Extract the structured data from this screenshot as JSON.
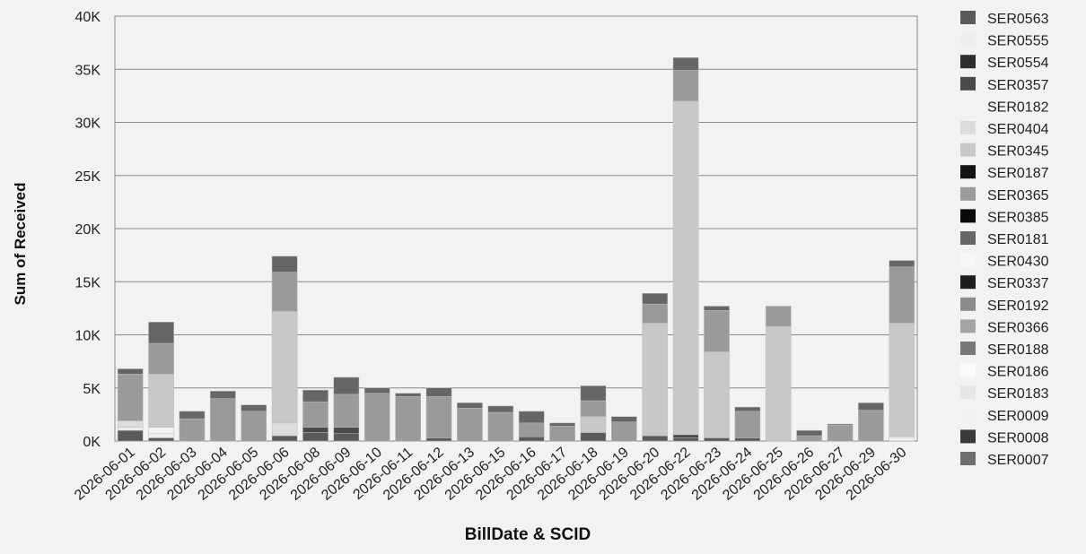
{
  "chart_data": {
    "type": "bar",
    "stacked": true,
    "title": "",
    "xlabel": "BillDate & SCID",
    "ylabel": "Sum of Received",
    "ylim": [
      0,
      40000
    ],
    "yticks": [
      0,
      5000,
      10000,
      15000,
      20000,
      25000,
      30000,
      35000,
      40000
    ],
    "ytick_labels": [
      "0K",
      "5K",
      "10K",
      "15K",
      "20K",
      "25K",
      "30K",
      "35K",
      "40K"
    ],
    "grid": true,
    "legend": "right",
    "categories": [
      "2026-06-01",
      "2026-06-02",
      "2026-06-03",
      "2026-06-04",
      "2026-06-05",
      "2026-06-06",
      "2026-06-08",
      "2026-06-09",
      "2026-06-10",
      "2026-06-11",
      "2026-06-12",
      "2026-06-13",
      "2026-06-15",
      "2026-06-16",
      "2026-06-17",
      "2026-06-18",
      "2026-06-19",
      "2026-06-20",
      "2026-06-22",
      "2026-06-23",
      "2026-06-24",
      "2026-06-25",
      "2026-06-26",
      "2026-06-27",
      "2026-06-29",
      "2026-06-30"
    ],
    "series": [
      {
        "name": "SER0563",
        "color": "#5a5a5a",
        "values": [
          1000,
          300,
          0,
          0,
          0,
          500,
          800,
          700,
          0,
          0,
          300,
          0,
          0,
          400,
          0,
          800,
          0,
          500,
          300,
          300,
          300,
          0,
          0,
          0,
          0,
          0
        ]
      },
      {
        "name": "SER0555",
        "color": "#ededed",
        "values": [
          300,
          400,
          0,
          0,
          0,
          0,
          0,
          0,
          0,
          0,
          0,
          0,
          0,
          0,
          0,
          0,
          0,
          0,
          0,
          0,
          0,
          0,
          0,
          0,
          0,
          400
        ]
      },
      {
        "name": "SER0554",
        "color": "#2e2e2e",
        "values": [
          0,
          0,
          0,
          0,
          0,
          0,
          0,
          0,
          0,
          0,
          0,
          0,
          0,
          0,
          0,
          0,
          0,
          0,
          0,
          0,
          0,
          0,
          0,
          0,
          0,
          0
        ]
      },
      {
        "name": "SER0357",
        "color": "#4a4a4a",
        "values": [
          0,
          0,
          0,
          0,
          0,
          0,
          500,
          600,
          0,
          0,
          0,
          0,
          0,
          0,
          0,
          0,
          0,
          0,
          300,
          0,
          0,
          0,
          0,
          0,
          0,
          0
        ]
      },
      {
        "name": "SER0182",
        "color": "#f3f3f3",
        "values": [
          0,
          600,
          0,
          0,
          0,
          0,
          0,
          0,
          0,
          0,
          0,
          0,
          0,
          0,
          0,
          0,
          0,
          0,
          0,
          0,
          0,
          0,
          0,
          0,
          0,
          0
        ]
      },
      {
        "name": "SER0404",
        "color": "#dcdcdc",
        "values": [
          600,
          0,
          0,
          0,
          0,
          1200,
          0,
          0,
          0,
          0,
          0,
          0,
          0,
          0,
          0,
          0,
          0,
          0,
          0,
          0,
          0,
          0,
          0,
          0,
          0,
          0
        ]
      },
      {
        "name": "SER0345",
        "color": "#c8c8c8",
        "values": [
          0,
          5000,
          0,
          0,
          0,
          10500,
          0,
          0,
          0,
          0,
          0,
          0,
          0,
          0,
          0,
          1500,
          0,
          10600,
          31400,
          8100,
          0,
          10800,
          0,
          0,
          0,
          10700
        ]
      },
      {
        "name": "SER0187",
        "color": "#141414",
        "values": [
          0,
          0,
          0,
          0,
          0,
          0,
          0,
          0,
          0,
          0,
          0,
          0,
          0,
          0,
          0,
          0,
          0,
          0,
          0,
          0,
          0,
          0,
          0,
          0,
          0,
          0
        ]
      },
      {
        "name": "SER0365",
        "color": "#9a9a9a",
        "values": [
          4400,
          2900,
          2100,
          4000,
          2800,
          3700,
          2400,
          3100,
          4500,
          4200,
          3900,
          3100,
          2700,
          1300,
          1400,
          1500,
          1800,
          1800,
          2900,
          3900,
          2500,
          1900,
          500,
          1500,
          2900,
          5300
        ]
      },
      {
        "name": "SER0385",
        "color": "#0a0a0a",
        "values": [
          0,
          0,
          0,
          0,
          0,
          0,
          0,
          0,
          0,
          0,
          0,
          0,
          0,
          0,
          0,
          0,
          0,
          0,
          0,
          0,
          0,
          0,
          0,
          0,
          0,
          0
        ]
      },
      {
        "name": "SER0181",
        "color": "#666666",
        "values": [
          500,
          2000,
          700,
          700,
          600,
          1500,
          1100,
          1600,
          500,
          300,
          800,
          500,
          600,
          1100,
          300,
          1400,
          500,
          1000,
          1200,
          400,
          400,
          0,
          500,
          100,
          700,
          600
        ]
      },
      {
        "name": "SER0430",
        "color": "#f7f7f7",
        "values": [
          0,
          0,
          0,
          0,
          0,
          0,
          0,
          0,
          0,
          0,
          0,
          0,
          0,
          0,
          0,
          0,
          0,
          0,
          0,
          0,
          0,
          0,
          0,
          0,
          0,
          0
        ]
      },
      {
        "name": "SER0337",
        "color": "#1e1e1e",
        "values": [
          0,
          0,
          0,
          0,
          0,
          0,
          0,
          0,
          0,
          0,
          0,
          0,
          0,
          0,
          0,
          0,
          0,
          0,
          0,
          0,
          0,
          0,
          0,
          0,
          0,
          0
        ]
      },
      {
        "name": "SER0192",
        "color": "#8c8c8c",
        "values": [
          0,
          0,
          0,
          0,
          0,
          0,
          0,
          0,
          0,
          0,
          0,
          0,
          0,
          0,
          0,
          0,
          0,
          0,
          0,
          0,
          0,
          0,
          0,
          0,
          0,
          0
        ]
      },
      {
        "name": "SER0366",
        "color": "#a3a3a3",
        "values": [
          0,
          0,
          0,
          0,
          0,
          0,
          0,
          0,
          0,
          0,
          0,
          0,
          0,
          0,
          0,
          0,
          0,
          0,
          0,
          0,
          0,
          0,
          0,
          0,
          0,
          0
        ]
      },
      {
        "name": "SER0188",
        "color": "#787878",
        "values": [
          0,
          0,
          0,
          0,
          0,
          0,
          0,
          0,
          0,
          0,
          0,
          0,
          0,
          0,
          0,
          0,
          0,
          0,
          0,
          0,
          0,
          0,
          0,
          0,
          0,
          0
        ]
      },
      {
        "name": "SER0186",
        "color": "#fafafa",
        "values": [
          0,
          0,
          0,
          0,
          0,
          0,
          0,
          0,
          0,
          0,
          0,
          0,
          0,
          0,
          0,
          0,
          0,
          0,
          0,
          0,
          0,
          0,
          0,
          0,
          0,
          0
        ]
      },
      {
        "name": "SER0183",
        "color": "#e6e6e6",
        "values": [
          0,
          0,
          0,
          0,
          0,
          0,
          0,
          0,
          0,
          0,
          0,
          0,
          0,
          0,
          0,
          0,
          0,
          0,
          0,
          0,
          0,
          0,
          0,
          0,
          0,
          0
        ]
      },
      {
        "name": "SER0009",
        "color": "#f0f0f0",
        "values": [
          0,
          0,
          0,
          0,
          0,
          0,
          0,
          0,
          0,
          0,
          0,
          0,
          0,
          0,
          0,
          0,
          0,
          0,
          0,
          0,
          0,
          0,
          0,
          0,
          0,
          0
        ]
      },
      {
        "name": "SER0008",
        "color": "#3a3a3a",
        "values": [
          0,
          0,
          0,
          0,
          0,
          0,
          0,
          0,
          0,
          0,
          0,
          0,
          0,
          0,
          0,
          0,
          0,
          0,
          0,
          0,
          0,
          0,
          0,
          0,
          0,
          0
        ]
      },
      {
        "name": "SER0007",
        "color": "#6e6e6e",
        "values": [
          0,
          0,
          0,
          0,
          0,
          0,
          0,
          0,
          0,
          0,
          0,
          0,
          0,
          0,
          0,
          0,
          0,
          0,
          0,
          0,
          0,
          0,
          0,
          0,
          0,
          0
        ]
      }
    ]
  }
}
